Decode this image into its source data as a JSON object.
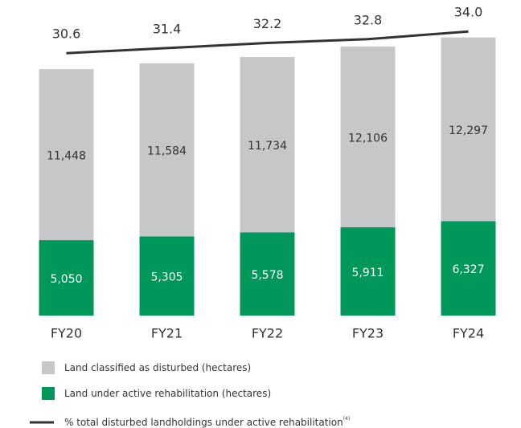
{
  "chart_data": {
    "type": "stacked-bar-line",
    "categories": [
      "FY20",
      "FY21",
      "FY22",
      "FY23",
      "FY24"
    ],
    "ylim": [
      0,
      20000
    ],
    "y2lim": [
      -10.6,
      36.3
    ],
    "series": [
      {
        "name": "Land under active rehabilitation (hectares)",
        "color": "#00975a",
        "values": [
          5050,
          5305,
          5578,
          5911,
          6327
        ],
        "value_labels": [
          "5,050",
          "5,305",
          "5,578",
          "5,911",
          "6,327"
        ]
      },
      {
        "name": "Land classified as disturbed (hectares)",
        "color": "#c6c7c8",
        "values": [
          11448,
          11584,
          11734,
          12106,
          12297
        ],
        "value_labels": [
          "11,448",
          "11,584",
          "11,734",
          "12,106",
          "12,297"
        ]
      },
      {
        "name": "% total disturbed landholdings under active rehabilitation",
        "note": "(4)",
        "color": "#333333",
        "axis": "y2",
        "values": [
          30.6,
          31.4,
          32.2,
          32.8,
          34.0
        ],
        "value_labels": [
          "30.6",
          "31.4",
          "32.2",
          "32.8",
          "34.0"
        ]
      }
    ]
  }
}
